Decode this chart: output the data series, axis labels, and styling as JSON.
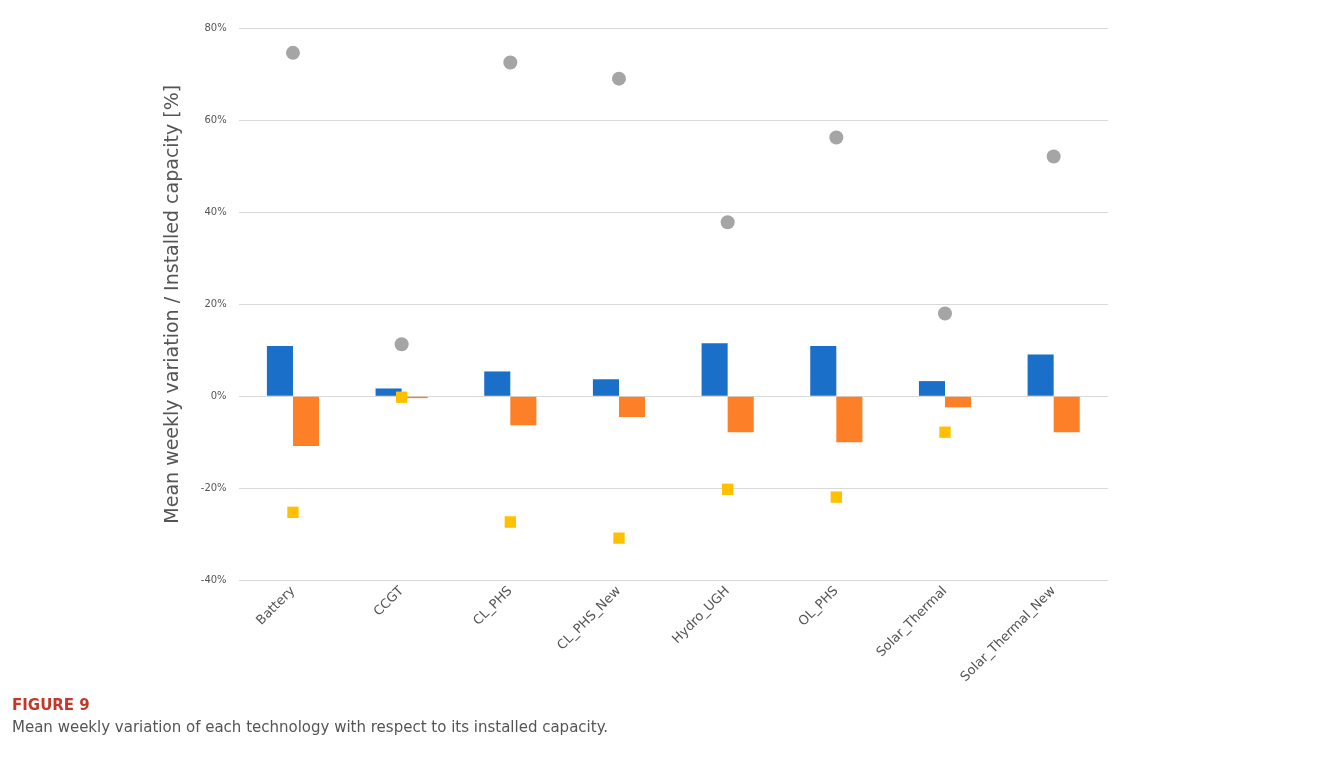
{
  "chart_data": {
    "type": "bar",
    "title": "FIGURE 9",
    "subtitle": "Mean weekly variation of each technology with respect to its installed capacity.",
    "ylabel": "Mean weekly variation / Installed capacity [%]",
    "categories": [
      "Battery",
      "CCGT",
      "CL_PHS",
      "CL_PHS_New",
      "Hydro_UGH",
      "OL_PHS",
      "Solar_Thermal",
      "Solar_Thermal_New"
    ],
    "series": [
      {
        "color": "#1a70c8",
        "values": [
          10.9,
          1.7,
          5.4,
          3.7,
          11.5,
          10.9,
          3.3,
          9.1
        ]
      },
      {
        "color": "#fd7f28",
        "values": [
          -10.8,
          -0.4,
          -6.3,
          -4.5,
          -7.8,
          -10.0,
          -2.4,
          -7.8
        ]
      },
      {
        "type": "scatter",
        "marker": "circle",
        "color": "#a5a5a5",
        "x": [
          "Battery",
          "CCGT",
          "CL_PHS",
          "CL_PHS_New",
          "Hydro_UGH",
          "OL_PHS",
          "Solar_Thermal",
          "Solar_Thermal_New"
        ],
        "values": [
          74.6,
          11.3,
          72.5,
          69.0,
          37.8,
          56.2,
          18.0,
          52.1
        ]
      },
      {
        "type": "scatter",
        "marker": "square",
        "color": "#ffc000",
        "x": [
          "Battery",
          "CCGT",
          "CL_PHS",
          "CL_PHS_New",
          "Hydro_UGH",
          "OL_PHS",
          "Solar_Thermal",
          "Solar_Thermal_New"
        ],
        "values": [
          -25.2,
          -0.2,
          -27.3,
          -30.8,
          -20.2,
          -21.9,
          -7.8,
          null
        ]
      }
    ],
    "ylim": [
      -40,
      80
    ],
    "yticks": [
      {
        "value": -40,
        "label": "-40%"
      },
      {
        "value": -20,
        "label": "-20%"
      },
      {
        "value": 0,
        "label": "0%"
      },
      {
        "value": 20,
        "label": "20%"
      },
      {
        "value": 40,
        "label": "40%"
      },
      {
        "value": 60,
        "label": "60%"
      },
      {
        "value": 80,
        "label": "80%"
      }
    ],
    "grid": "y",
    "legend": false
  }
}
